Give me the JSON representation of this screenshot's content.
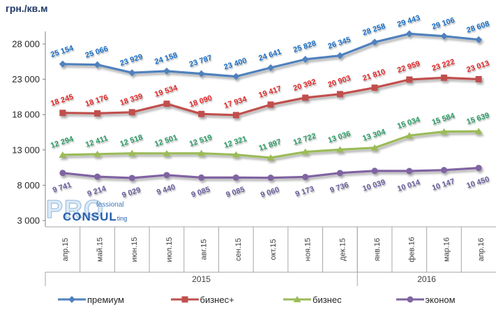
{
  "watermark": {
    "line1_big": "PRO",
    "line1_small": "fessional",
    "line2_big": "CONSUL",
    "line2_small": "ting"
  },
  "chart_data": {
    "type": "line",
    "title": "",
    "ylabel": "грн./кв.м",
    "xlabel": "",
    "grid": false,
    "legend_position": "bottom",
    "y_ticks": [
      28000,
      23000,
      18000,
      13000,
      8000,
      3000
    ],
    "ylim": [
      2000,
      30500
    ],
    "categories": [
      "апр.15",
      "май.15",
      "июн.15",
      "июл.15",
      "авг.15",
      "сен.15",
      "окт.15",
      "ноя.15",
      "дек.15",
      "янв.16",
      "фев.16",
      "мар.16",
      "апр.16"
    ],
    "year_groups": [
      {
        "label": "2015",
        "span": 9
      },
      {
        "label": "2016",
        "span": 4
      }
    ],
    "series": [
      {
        "name": "премиум",
        "key": "premium",
        "color": "#4F81BD",
        "label_color": "#1F6FC5",
        "marker": "diamond",
        "label_position": "above",
        "values": [
          25154,
          25066,
          23929,
          24158,
          23787,
          23400,
          24641,
          25828,
          26345,
          28258,
          29443,
          29106,
          28608
        ]
      },
      {
        "name": "бизнес+",
        "key": "business-plus",
        "color": "#C0504D",
        "label_color": "#DF2B2B",
        "marker": "square",
        "label_position": "above",
        "values": [
          18245,
          18176,
          18339,
          19534,
          18090,
          17934,
          19417,
          20392,
          20903,
          21810,
          22959,
          23222,
          23013
        ]
      },
      {
        "name": "бизнес",
        "key": "business",
        "color": "#9BBB59",
        "label_color": "#2E9B66",
        "marker": "triangle",
        "label_position": "above",
        "values": [
          12294,
          12411,
          12518,
          12501,
          12519,
          12321,
          11897,
          12722,
          13036,
          13304,
          15034,
          15584,
          15639
        ]
      },
      {
        "name": "эконом",
        "key": "economy",
        "color": "#8064A2",
        "label_color": "#67609B",
        "marker": "circle",
        "label_position": "below",
        "values": [
          9741,
          9214,
          9029,
          9440,
          9085,
          9085,
          9060,
          9173,
          9736,
          10039,
          10014,
          10147,
          10450
        ]
      }
    ]
  }
}
